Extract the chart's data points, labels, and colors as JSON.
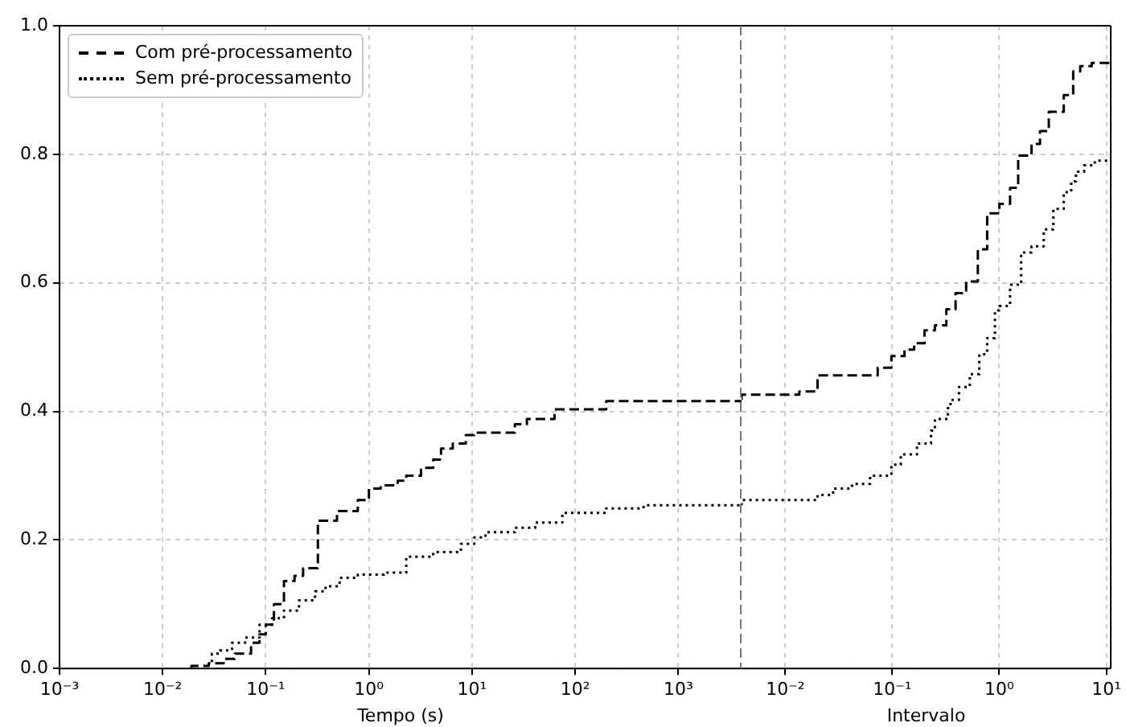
{
  "chart_data": [
    {
      "type": "step",
      "xlabel": "Tempo (s)",
      "log": "x",
      "xlim": [
        0.001,
        4100
      ],
      "ylim": [
        0,
        1
      ],
      "xticks": [
        {
          "value": 0.001,
          "label": "10⁻³"
        },
        {
          "value": 0.01,
          "label": "10⁻²"
        },
        {
          "value": 0.1,
          "label": "10⁻¹"
        },
        {
          "value": 1,
          "label": "10⁰"
        },
        {
          "value": 10,
          "label": "10¹"
        },
        {
          "value": 100,
          "label": "10²"
        },
        {
          "value": 1000,
          "label": "10³"
        }
      ],
      "yticks": [
        {
          "value": 0,
          "label": "0.0"
        },
        {
          "value": 0.2,
          "label": "0.2"
        },
        {
          "value": 0.4,
          "label": "0.4"
        },
        {
          "value": 0.6,
          "label": "0.6"
        },
        {
          "value": 0.8,
          "label": "0.8"
        },
        {
          "value": 1,
          "label": "1.0"
        }
      ],
      "grid": true,
      "legend": "top left",
      "marker": "none",
      "series": [
        {
          "name": "Com pré-processamento",
          "color": "#000000",
          "line_style": "dashed",
          "x": [
            0.019,
            0.028,
            0.039,
            0.05,
            0.072,
            0.087,
            0.1,
            0.12,
            0.15,
            0.19,
            0.23,
            0.32,
            0.49,
            0.78,
            1.0,
            1.3,
            1.9,
            2.3,
            3.2,
            4.2,
            5.0,
            6.5,
            8.7,
            10.5,
            26,
            34,
            63,
            200,
            780,
            4100
          ],
          "values": [
            0,
            0.004,
            0.008,
            0.015,
            0.023,
            0.04,
            0.053,
            0.068,
            0.1,
            0.136,
            0.144,
            0.156,
            0.23,
            0.245,
            0.262,
            0.28,
            0.285,
            0.292,
            0.3,
            0.312,
            0.325,
            0.342,
            0.35,
            0.363,
            0.367,
            0.38,
            0.388,
            0.403,
            0.416,
            0.416
          ]
        },
        {
          "name": "Sem pré-processamento",
          "color": "#000000",
          "line_style": "dotted",
          "x": [
            0.03,
            0.036,
            0.047,
            0.063,
            0.087,
            0.115,
            0.15,
            0.21,
            0.3,
            0.38,
            0.52,
            0.78,
            1.4,
            2.3,
            4.2,
            7.8,
            10.5,
            13.5,
            26,
            41,
            75,
            200,
            460,
            2950,
            4100
          ],
          "values": [
            0.01,
            0.023,
            0.028,
            0.04,
            0.048,
            0.068,
            0.078,
            0.09,
            0.106,
            0.12,
            0.128,
            0.141,
            0.146,
            0.149,
            0.174,
            0.181,
            0.194,
            0.204,
            0.212,
            0.219,
            0.227,
            0.242,
            0.249,
            0.254,
            0.254
          ]
        }
      ]
    },
    {
      "type": "step",
      "xlabel": "Intervalo",
      "log": "x",
      "xlim": [
        0.0039,
        11
      ],
      "ylim": [
        0,
        1
      ],
      "xticks": [
        {
          "value": 0.01,
          "label": "10⁻²"
        },
        {
          "value": 0.1,
          "label": "10⁻¹"
        },
        {
          "value": 1,
          "label": "10⁰"
        },
        {
          "value": 10,
          "label": "10¹"
        }
      ],
      "yticks": [
        0,
        0.2,
        0.4,
        0.6,
        0.8,
        1
      ],
      "tick_labels": "x",
      "grid": true,
      "marker": "none",
      "series": [
        {
          "color": "#000000",
          "line_style": "dashed",
          "x": [
            0.0039,
            0.0135,
            0.02,
            0.073,
            0.098,
            0.13,
            0.16,
            0.2,
            0.25,
            0.32,
            0.39,
            0.49,
            0.63,
            0.77,
            1.0,
            1.26,
            1.5,
            2.0,
            2.4,
            2.9,
            4.0,
            4.9,
            5.7,
            7.3,
            9.5,
            11
          ],
          "values": [
            0.418,
            0.426,
            0.431,
            0.456,
            0.468,
            0.486,
            0.496,
            0.506,
            0.526,
            0.534,
            0.559,
            0.584,
            0.602,
            0.652,
            0.708,
            0.723,
            0.748,
            0.798,
            0.816,
            0.836,
            0.866,
            0.892,
            0.929,
            0.937,
            0.942,
            0.942
          ]
        },
        {
          "color": "#000000",
          "line_style": "dotted",
          "x": [
            0.0039,
            0.02,
            0.028,
            0.042,
            0.062,
            0.098,
            0.12,
            0.17,
            0.23,
            0.25,
            0.33,
            0.35,
            0.42,
            0.53,
            0.65,
            0.77,
            0.91,
            1.0,
            1.26,
            1.6,
            2.0,
            2.6,
            3.2,
            4.0,
            4.7,
            5.2,
            6.2,
            7.8,
            9.5,
            11
          ],
          "values": [
            0.254,
            0.262,
            0.27,
            0.28,
            0.287,
            0.3,
            0.317,
            0.333,
            0.35,
            0.37,
            0.388,
            0.405,
            0.418,
            0.438,
            0.458,
            0.489,
            0.514,
            0.557,
            0.564,
            0.597,
            0.647,
            0.657,
            0.683,
            0.715,
            0.741,
            0.758,
            0.773,
            0.783,
            0.79,
            0.79
          ]
        }
      ]
    }
  ]
}
